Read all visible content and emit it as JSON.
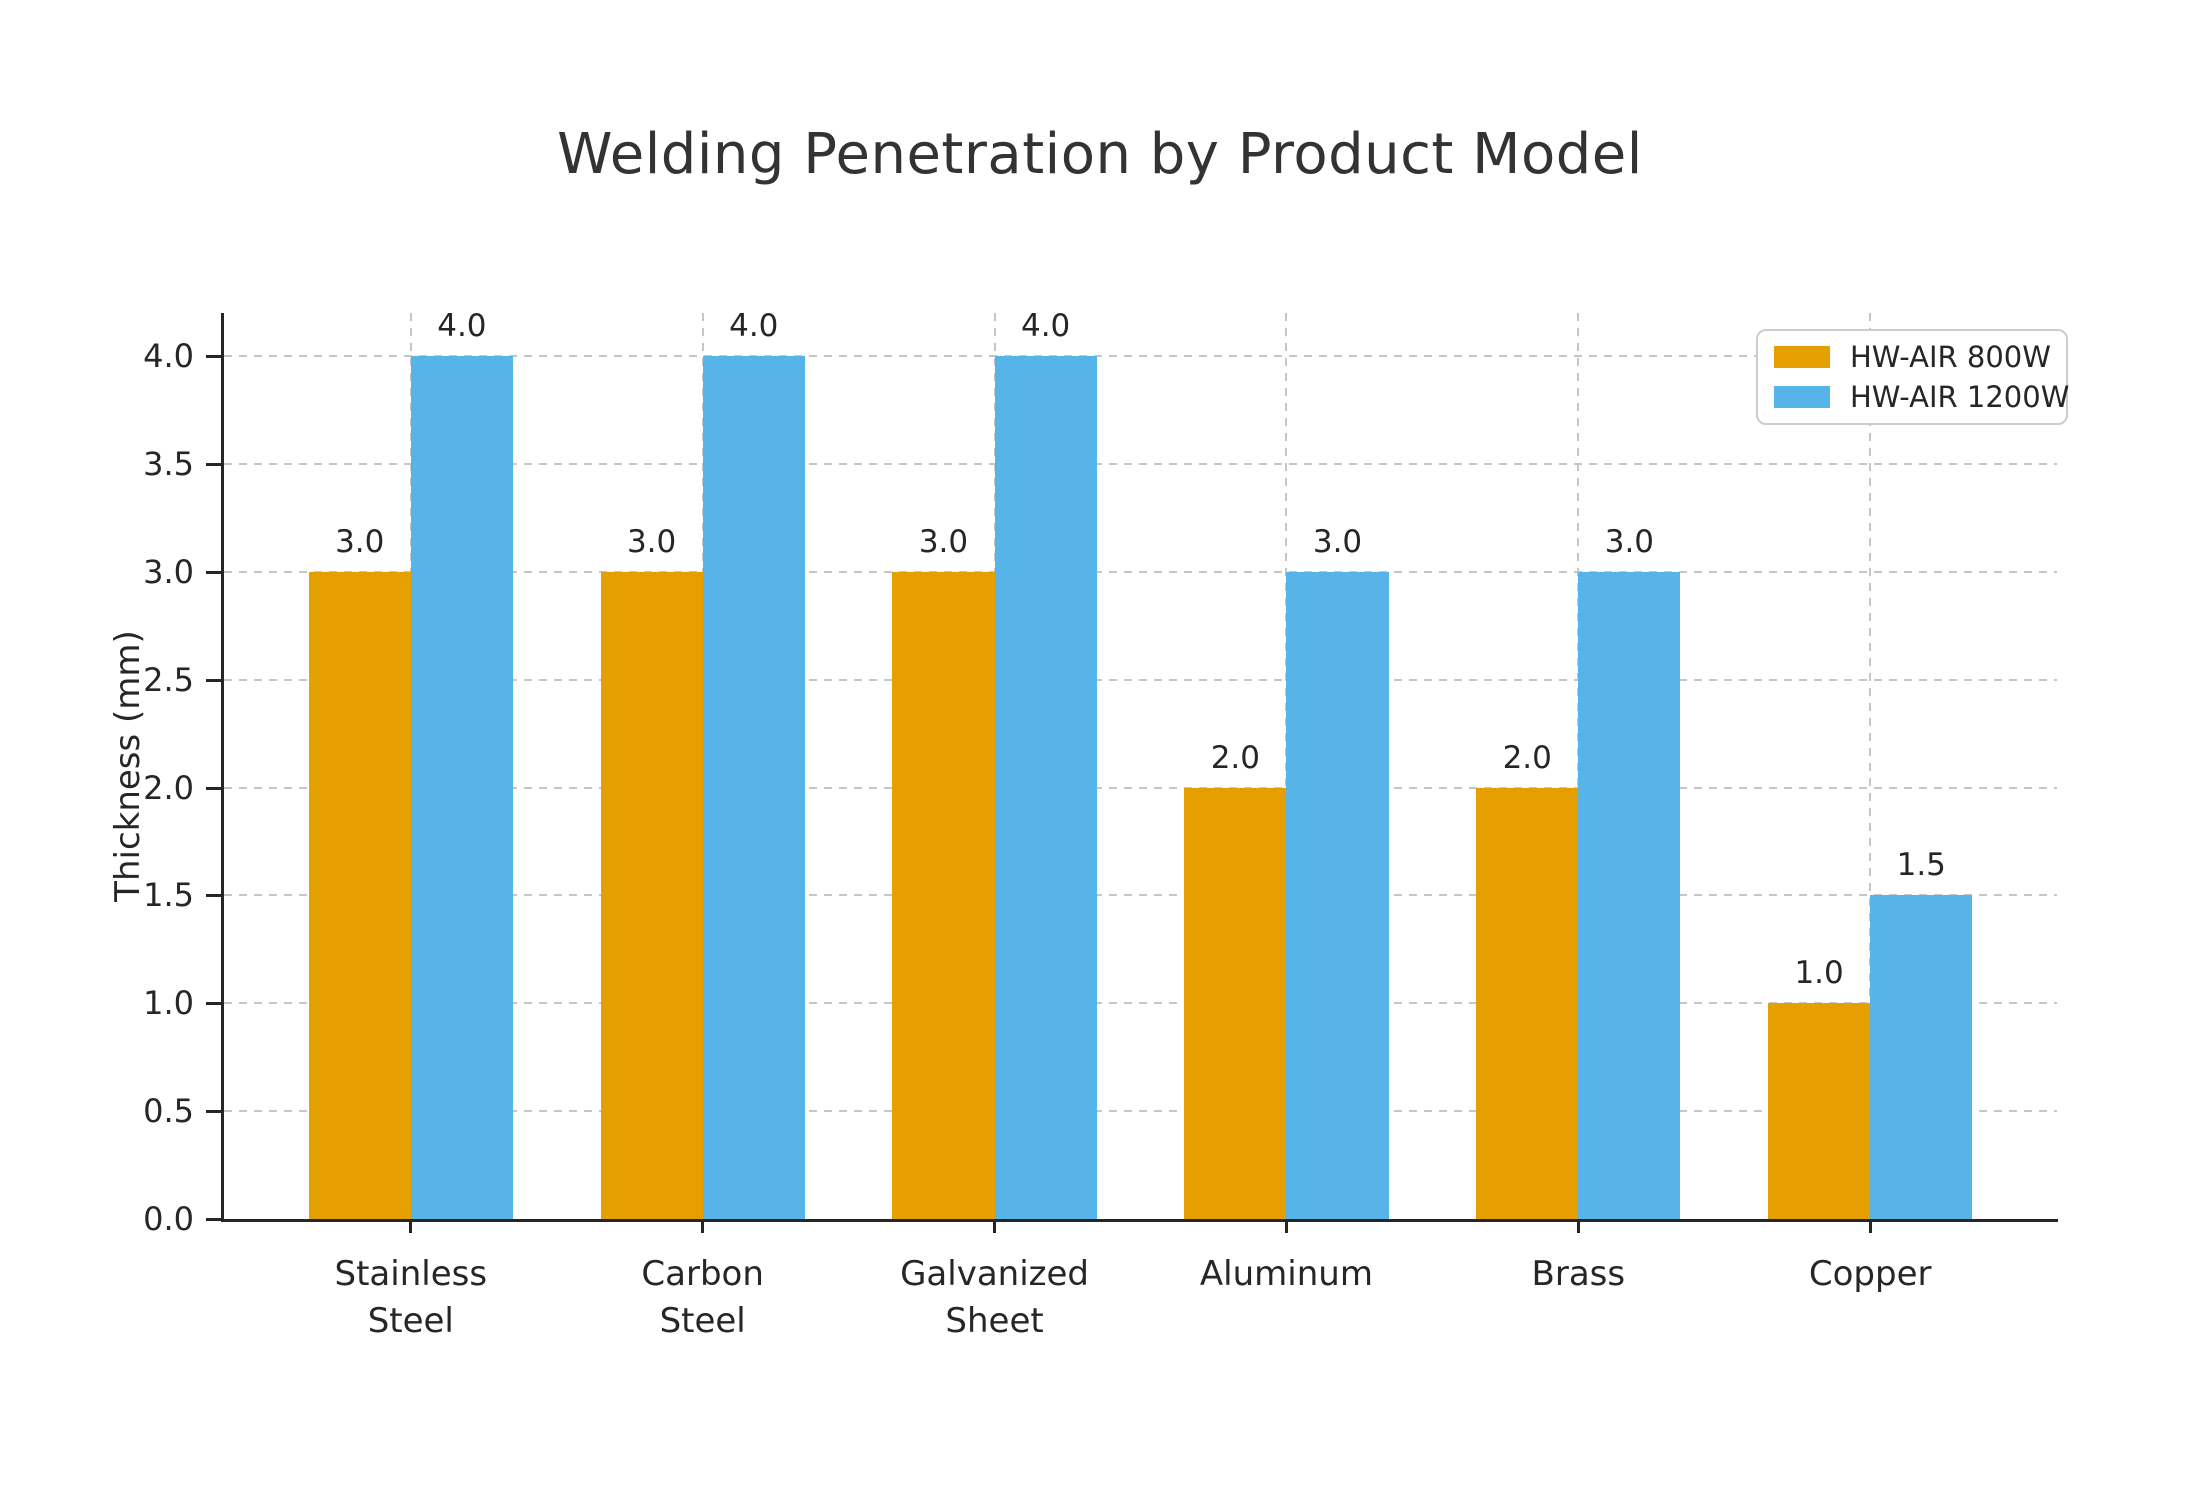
{
  "chart_data": {
    "type": "bar",
    "title": "Welding Penetration by Product Model",
    "xlabel": "",
    "ylabel": "Thickness (mm)",
    "categories": [
      "Stainless\nSteel",
      "Carbon\nSteel",
      "Galvanized\nSheet",
      "Aluminum",
      "Brass",
      "Copper"
    ],
    "series": [
      {
        "name": "HW-AIR 800W",
        "color": "#E69F00",
        "values": [
          3.0,
          3.0,
          3.0,
          2.0,
          2.0,
          1.0
        ]
      },
      {
        "name": "HW-AIR 1200W",
        "color": "#56B4E9",
        "values": [
          4.0,
          4.0,
          4.0,
          3.0,
          3.0,
          1.5
        ]
      }
    ],
    "bar_value_labels": {
      "HW-AIR 800W": [
        "3.0",
        "3.0",
        "3.0",
        "2.0",
        "2.0",
        "1.0"
      ],
      "HW-AIR 1200W": [
        "4.0",
        "4.0",
        "4.0",
        "3.0",
        "3.0",
        "1.5"
      ]
    },
    "ylim": [
      0,
      4.2
    ],
    "yticks": [
      0.0,
      0.5,
      1.0,
      1.5,
      2.0,
      2.5,
      3.0,
      3.5,
      4.0
    ],
    "ytick_labels": [
      "0.0",
      "0.5",
      "1.0",
      "1.5",
      "2.0",
      "2.5",
      "3.0",
      "3.5",
      "4.0"
    ],
    "grid": {
      "horizontal": true,
      "vertical": true,
      "style": "dashed"
    },
    "legend": {
      "position": "upper right",
      "entries": [
        "HW-AIR 800W",
        "HW-AIR 1200W"
      ]
    },
    "colors": {
      "series_800w": "#E69F00",
      "series_1200w": "#56B4E9",
      "grid": "#c6c6c6",
      "spine": "#262626",
      "tick_text": "#262626",
      "title_text": "#333333",
      "legend_border": "#cccccc",
      "background": "#ffffff"
    }
  }
}
